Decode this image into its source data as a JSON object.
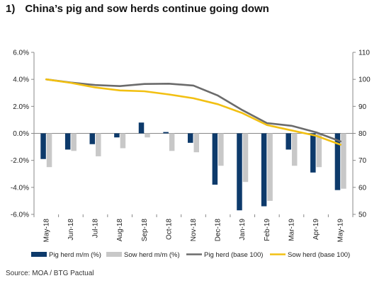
{
  "header": {
    "number": "1)",
    "title": "China’s pig and sow herds continue going down"
  },
  "source": "Source: MOA / BTG Pactual",
  "colors": {
    "pig_bar": "#0d3a6b",
    "sow_bar": "#c8c8c8",
    "pig_line": "#6b6b6b",
    "sow_line": "#f2c012",
    "axis": "#888888"
  },
  "chart_data": {
    "type": "bar",
    "categories": [
      "May-18",
      "Jun-18",
      "Jul-18",
      "Aug-18",
      "Sep-18",
      "Oct-18",
      "Nov-18",
      "Dec-18",
      "Jan-19",
      "Feb-19",
      "Mar-19",
      "Apr-19",
      "May-19"
    ],
    "left_axis": {
      "ylim": [
        -6.0,
        6.0
      ],
      "ticks": [
        "6.0%",
        "4.0%",
        "2.0%",
        "0.0%",
        "-2.0%",
        "-4.0%",
        "-6.0%"
      ],
      "tick_values": [
        6,
        4,
        2,
        0,
        -2,
        -4,
        -6
      ]
    },
    "right_axis": {
      "ylim": [
        50,
        110
      ],
      "ticks": [
        "110",
        "100",
        "90",
        "80",
        "70",
        "60",
        "50"
      ],
      "tick_values": [
        110,
        100,
        90,
        80,
        70,
        60,
        50
      ]
    },
    "series": [
      {
        "name": "Pig herd m/m (%)",
        "type": "bar",
        "axis": "left",
        "values": [
          -1.9,
          -1.2,
          -0.8,
          -0.3,
          0.8,
          0.1,
          -0.7,
          -3.8,
          -5.7,
          -5.4,
          -1.2,
          -2.9,
          -4.2
        ]
      },
      {
        "name": "Sow herd m/m (%)",
        "type": "bar",
        "axis": "left",
        "values": [
          -2.5,
          -1.3,
          -1.7,
          -1.1,
          -0.3,
          -1.3,
          -1.4,
          -2.4,
          -3.6,
          -5.0,
          -2.4,
          -2.5,
          -4.1
        ]
      },
      {
        "name": "Pig herd (base 100)",
        "type": "line",
        "axis": "right",
        "values": [
          100,
          98.8,
          97.9,
          97.5,
          98.3,
          98.4,
          97.7,
          94.0,
          88.6,
          83.8,
          82.8,
          80.4,
          77.0
        ]
      },
      {
        "name": "Sow herd (base 100)",
        "type": "line",
        "axis": "right",
        "values": [
          100,
          98.7,
          97.0,
          95.9,
          95.6,
          94.4,
          93.0,
          90.8,
          87.5,
          83.1,
          81.1,
          79.1,
          75.8
        ]
      }
    ],
    "legend_position": "bottom",
    "grid": false
  }
}
